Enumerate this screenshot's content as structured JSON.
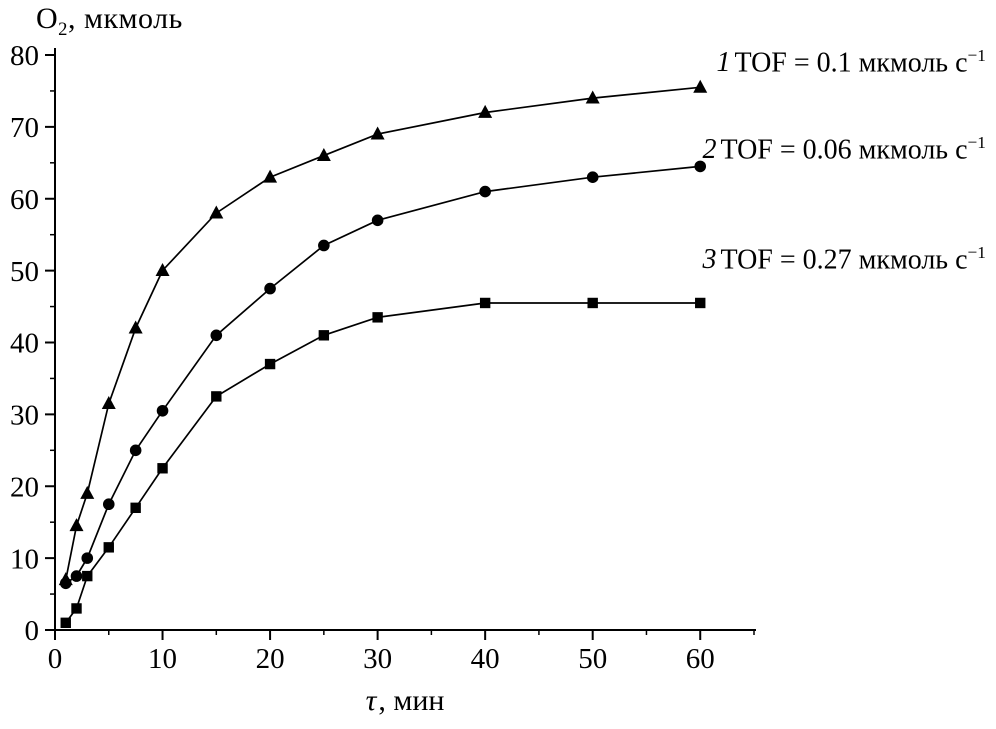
{
  "chart_data": {
    "type": "line",
    "title": "",
    "ylabel_parts": {
      "main": "O",
      "sub": "2",
      "rest": ", мкмоль"
    },
    "xlabel_parts": {
      "tau": "τ",
      "rest": ", мин"
    },
    "xlabel": "τ, мин",
    "ylabel": "O2, мкмоль",
    "xlim": [
      0,
      65
    ],
    "ylim": [
      0,
      80
    ],
    "x_major_ticks": [
      0,
      10,
      20,
      30,
      40,
      50,
      60
    ],
    "x_minor_ticks": [
      5,
      15,
      25,
      35,
      45,
      55,
      65
    ],
    "y_major_ticks": [
      0,
      10,
      20,
      30,
      40,
      50,
      60,
      70,
      80
    ],
    "y_minor_ticks": [
      5,
      15,
      25,
      35,
      45,
      55,
      65,
      75
    ],
    "grid": false,
    "legend_position": "right-inside-annotations",
    "colors": {
      "line": "#000000",
      "marker": "#000000",
      "background": "#ffffff"
    },
    "x": [
      1,
      2,
      3,
      5,
      7.5,
      10,
      15,
      20,
      25,
      30,
      40,
      50,
      60
    ],
    "series": [
      {
        "name": "1",
        "marker": "triangle",
        "values": [
          7,
          14.5,
          19,
          31.5,
          42,
          50,
          58,
          63,
          66,
          69,
          72,
          74,
          75.5
        ]
      },
      {
        "name": "2",
        "marker": "circle",
        "values": [
          6.5,
          7.5,
          10,
          17.5,
          25,
          30.5,
          41,
          47.5,
          53.5,
          57,
          61,
          63,
          64.5
        ]
      },
      {
        "name": "3",
        "marker": "square",
        "values": [
          1,
          3,
          7.5,
          11.5,
          17,
          22.5,
          32.5,
          37,
          41,
          43.5,
          45.5,
          45.5,
          45.5
        ]
      }
    ],
    "annotations": [
      {
        "index": "1",
        "text": "TOF = 0.1 мкмоль с",
        "sup": "−1"
      },
      {
        "index": "2",
        "text": "TOF = 0.06 мкмоль с",
        "sup": "−1"
      },
      {
        "index": "3",
        "text": "TOF = 0.27 мкмоль с",
        "sup": "−1"
      }
    ]
  }
}
